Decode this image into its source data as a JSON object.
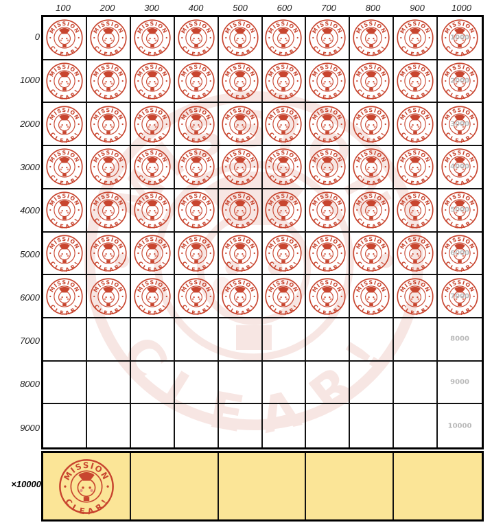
{
  "columns": [
    "100",
    "200",
    "300",
    "400",
    "500",
    "600",
    "700",
    "800",
    "900",
    "1000"
  ],
  "rows": [
    "0",
    "1000",
    "2000",
    "3000",
    "4000",
    "5000",
    "6000",
    "7000",
    "8000",
    "9000"
  ],
  "goal_labels": [
    "1000",
    "2000",
    "3000",
    "4000",
    "5000",
    "6000",
    "7000",
    "8000",
    "9000",
    "10000"
  ],
  "stamped_rows": 7,
  "stamp": {
    "top_text": "MISSION",
    "bottom_text": "CLEAR!",
    "color": "#c8452f"
  },
  "bonus": {
    "label": "×10000",
    "cells": 5,
    "stamped": 1,
    "background": "#fbe597"
  }
}
